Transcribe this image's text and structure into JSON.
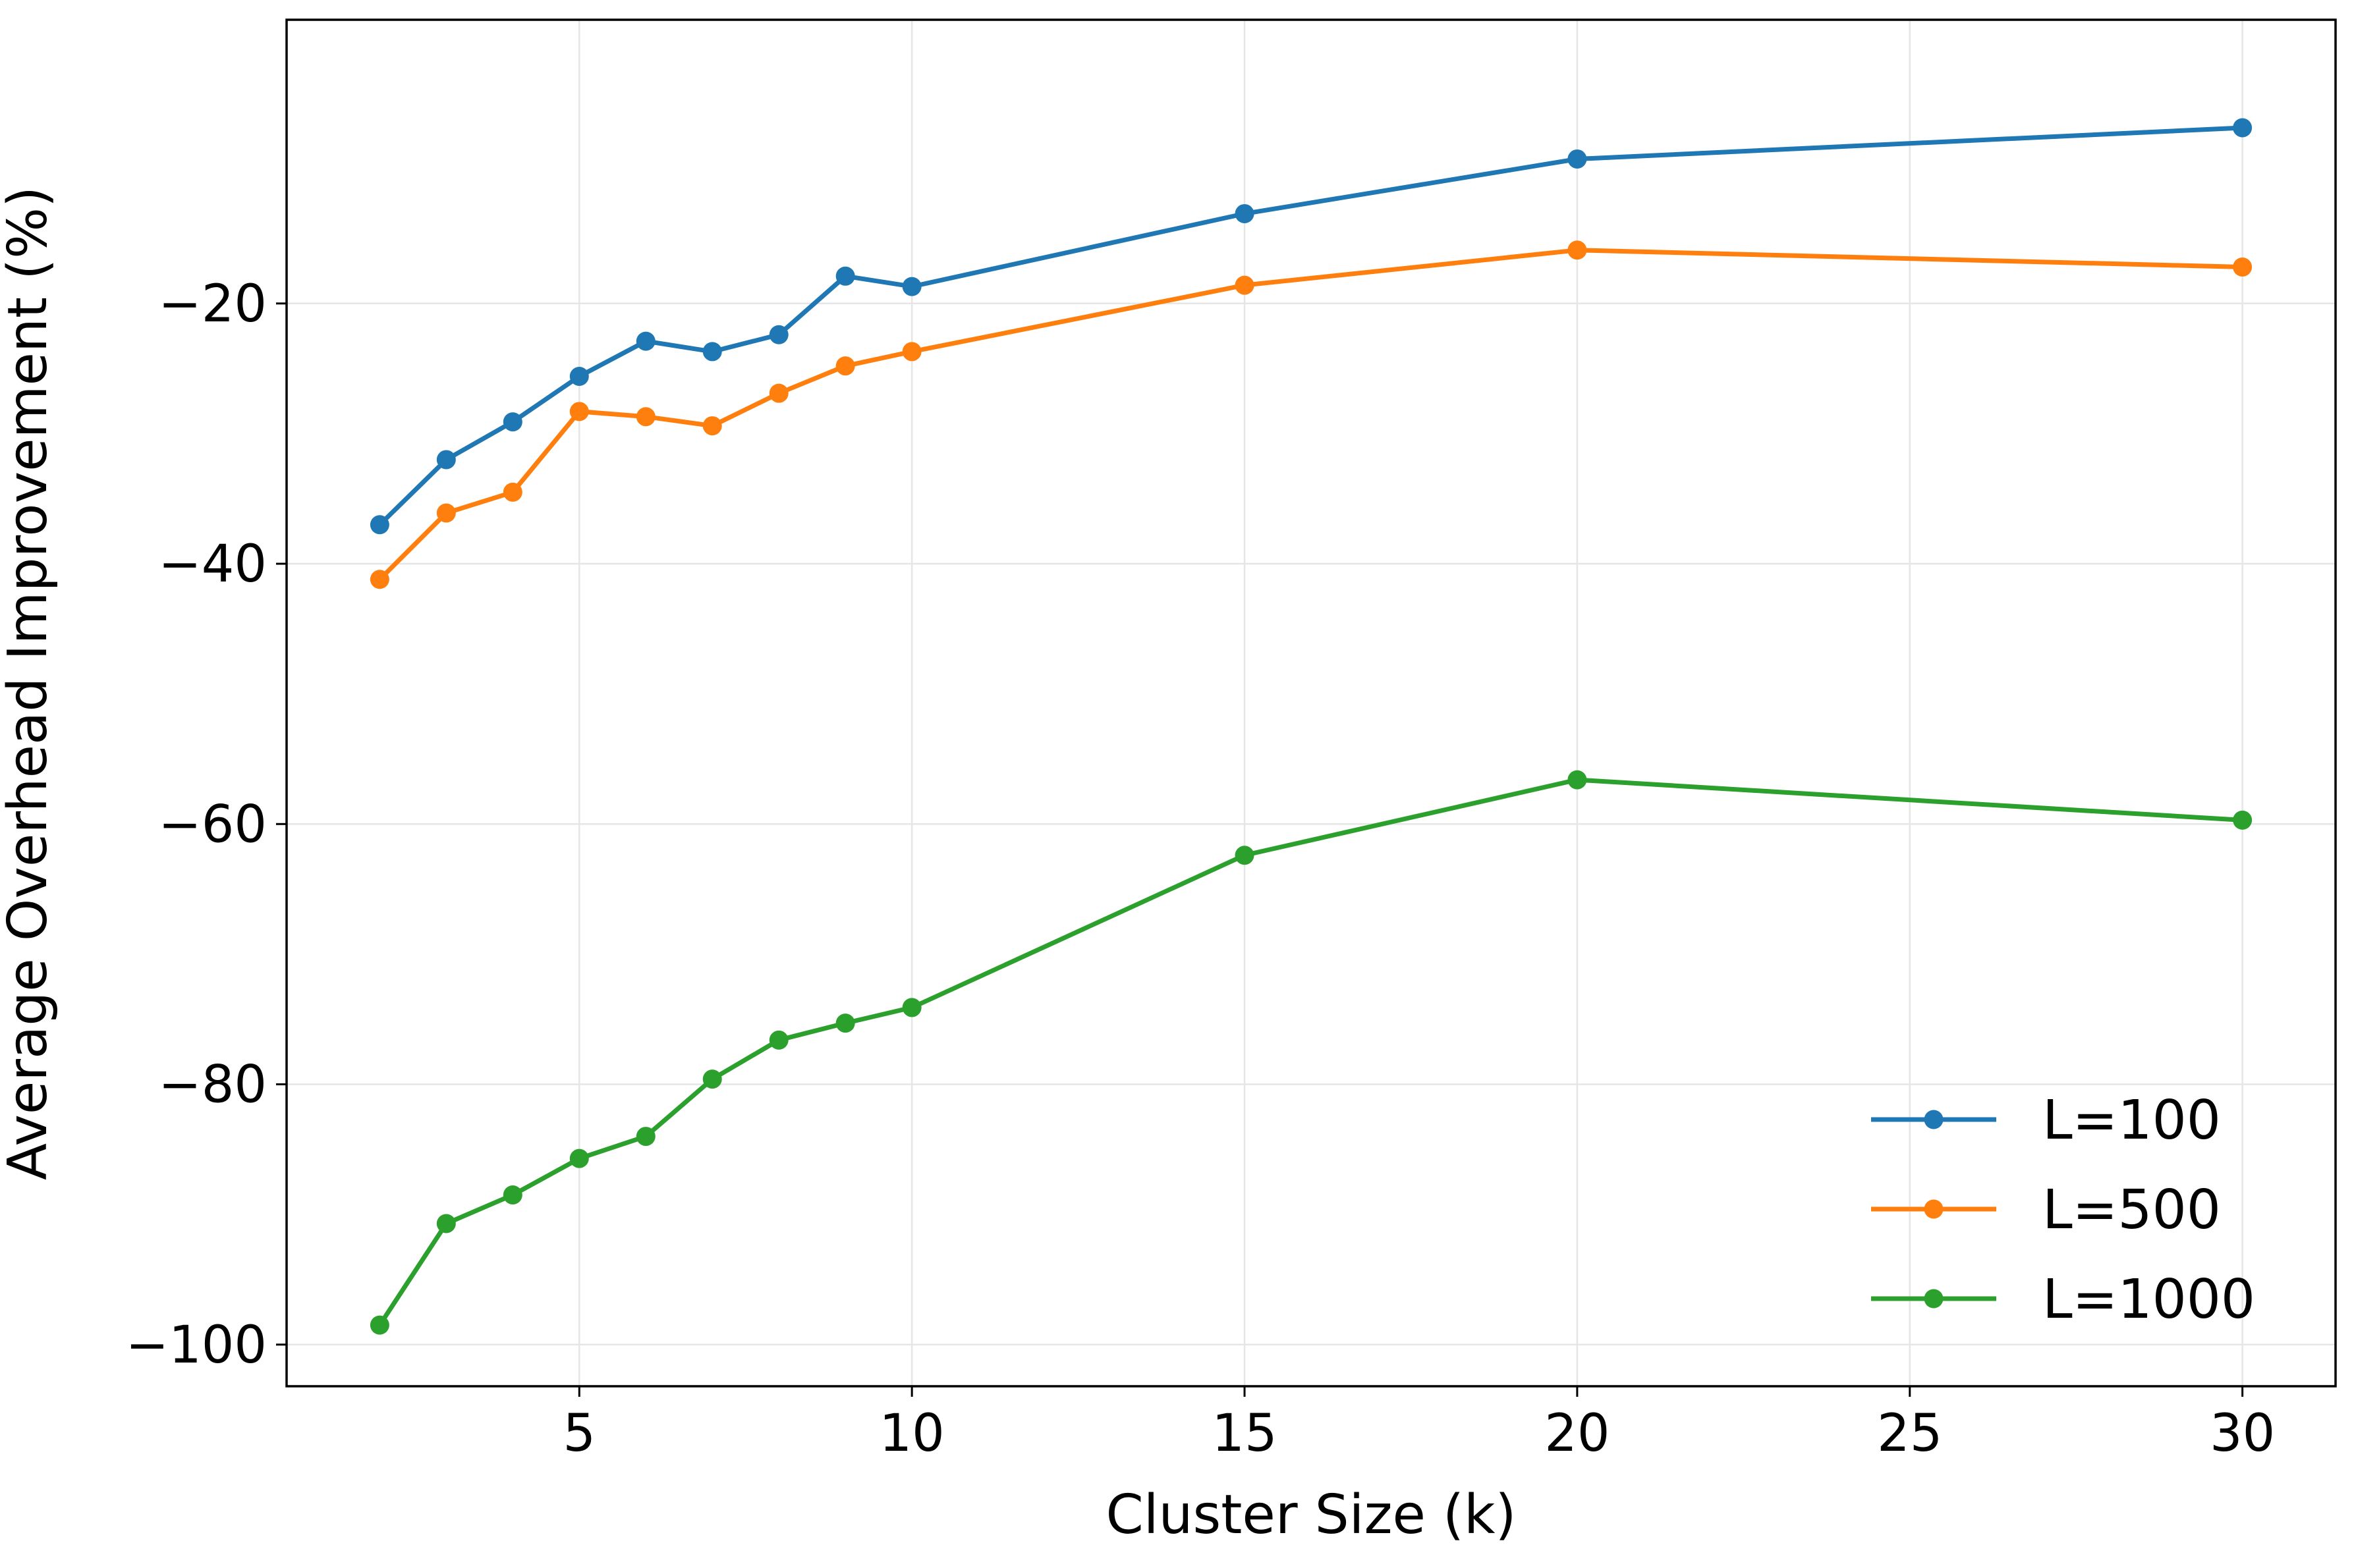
{
  "chart_data": {
    "type": "line",
    "title": "",
    "xlabel": "Cluster Size (k)",
    "ylabel": "Average Overhead Improvement (%)",
    "xlim": [
      0.6,
      31.4
    ],
    "ylim": [
      -103.2,
      1.8
    ],
    "xticks": [
      5,
      10,
      15,
      20,
      25,
      30
    ],
    "xtick_labels": [
      "5",
      "10",
      "15",
      "20",
      "25",
      "30"
    ],
    "yticks": [
      -100,
      -80,
      -60,
      -40,
      -20
    ],
    "ytick_labels": [
      "−100",
      "−80",
      "−60",
      "−40",
      "−20"
    ],
    "grid": true,
    "legend_position": "bottom-right",
    "x": [
      2,
      3,
      4,
      5,
      6,
      7,
      8,
      9,
      10,
      15,
      20,
      30
    ],
    "series": [
      {
        "name": "L=100",
        "color": "#1f77b4",
        "values": [
          -37.0,
          -32.0,
          -29.1,
          -25.6,
          -22.9,
          -23.7,
          -22.4,
          -17.9,
          -18.7,
          -13.1,
          -8.9,
          -6.5
        ]
      },
      {
        "name": "L=500",
        "color": "#ff7f0e",
        "values": [
          -41.2,
          -36.1,
          -34.5,
          -28.3,
          -28.7,
          -29.4,
          -26.9,
          -24.8,
          -23.7,
          -18.6,
          -15.9,
          -17.2
        ]
      },
      {
        "name": "L=1000",
        "color": "#2ca02c",
        "values": [
          -98.5,
          -90.7,
          -88.5,
          -85.7,
          -84.0,
          -79.6,
          -76.6,
          -75.3,
          -74.1,
          -62.4,
          -56.6,
          -59.7
        ]
      }
    ]
  }
}
